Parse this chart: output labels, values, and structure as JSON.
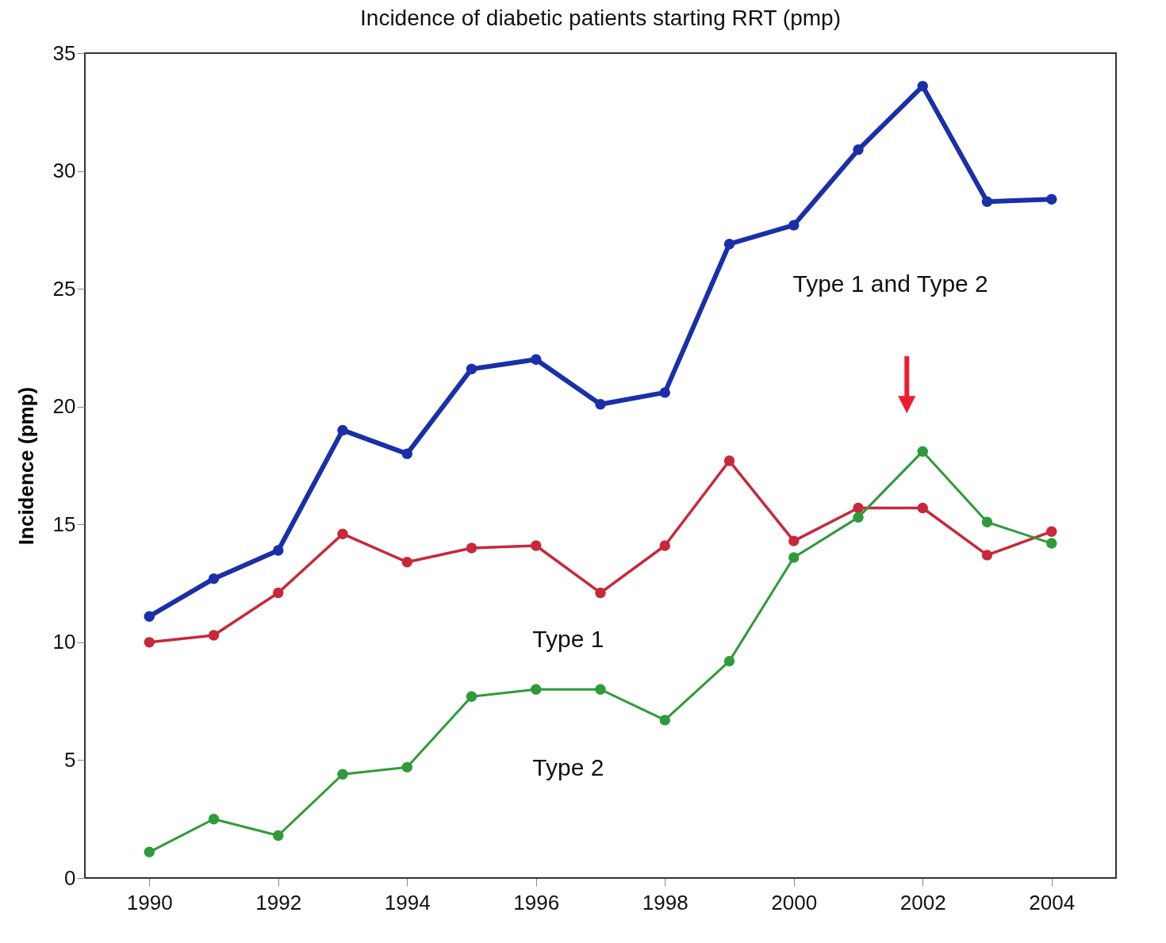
{
  "chart_data": {
    "type": "line",
    "title": "Incidence of diabetic patients starting RRT (pmp)",
    "ylabel": "Incidence (pmp)",
    "x": [
      1990,
      1991,
      1992,
      1993,
      1994,
      1995,
      1996,
      1997,
      1998,
      1999,
      2000,
      2001,
      2002,
      2003,
      2004
    ],
    "series": [
      {
        "name": "Type 1 and Type 2",
        "color": "#1a2fa8",
        "values": [
          11.1,
          12.7,
          13.9,
          19.0,
          18.0,
          21.6,
          22.0,
          20.1,
          20.6,
          26.9,
          27.7,
          30.9,
          33.6,
          28.7,
          28.8
        ]
      },
      {
        "name": "Type 1",
        "color": "#c8283a",
        "values": [
          10.0,
          10.3,
          12.1,
          14.6,
          13.4,
          14.0,
          14.1,
          12.1,
          14.1,
          17.7,
          14.3,
          15.7,
          15.7,
          13.7,
          14.7
        ]
      },
      {
        "name": "Type 2",
        "color": "#2f9a3a",
        "values": [
          1.1,
          2.5,
          1.8,
          4.4,
          4.7,
          7.7,
          8.0,
          8.0,
          6.7,
          9.2,
          13.6,
          15.3,
          18.1,
          15.1,
          14.2
        ]
      }
    ],
    "xlim": [
      1989,
      2005
    ],
    "xticks": [
      1990,
      1992,
      1994,
      1996,
      1998,
      2000,
      2002,
      2004
    ],
    "ylim": [
      0,
      35
    ],
    "yticks": [
      0,
      5,
      10,
      15,
      20,
      25,
      30,
      35
    ],
    "grid": false,
    "marker": "circle",
    "line_style": "solid"
  }
}
